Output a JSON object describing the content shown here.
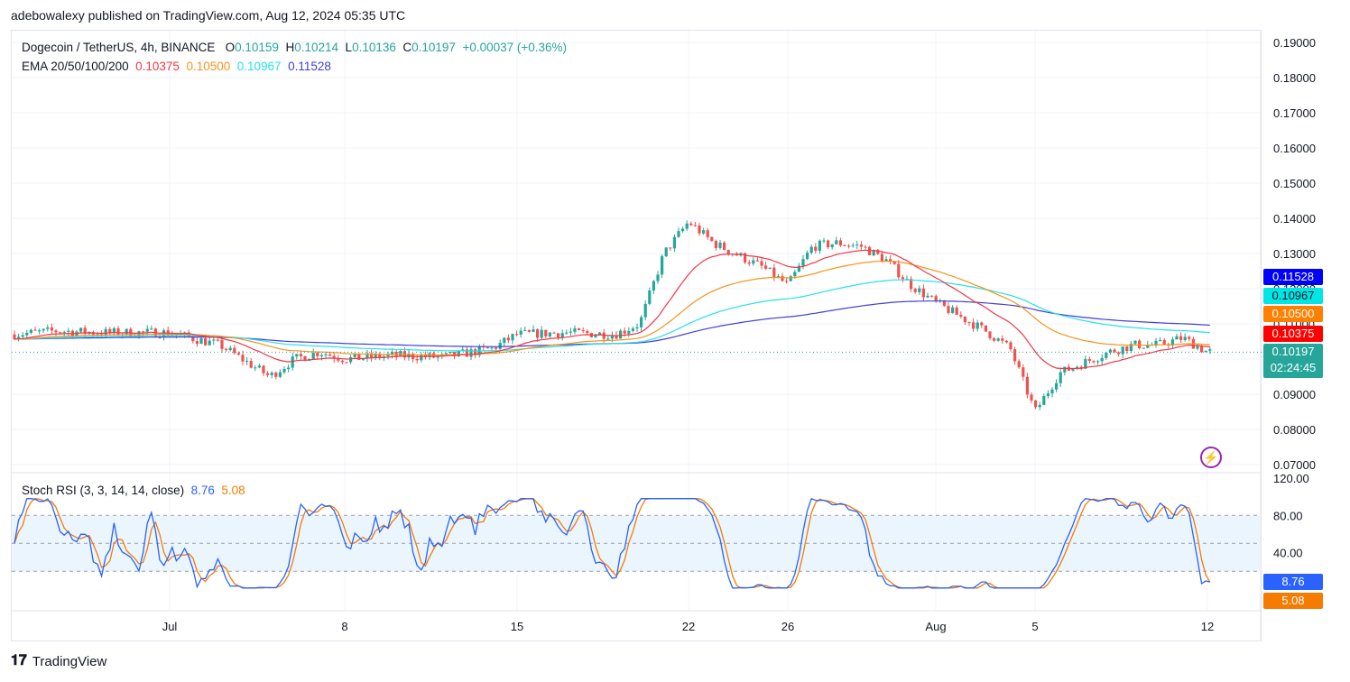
{
  "header": {
    "published": "adebowalexy published on TradingView.com, Aug 12, 2024 05:35 UTC"
  },
  "legend": {
    "symbol": "Dogecoin / TetherUS, 4h, BINANCE",
    "o_label": "O",
    "o": "0.10159",
    "h_label": "H",
    "h": "0.10214",
    "l_label": "L",
    "l": "0.10136",
    "c_label": "C",
    "c": "0.10197",
    "change": "+0.00037 (+0.36%)",
    "ema_label": "EMA 20/50/100/200",
    "ema20": "0.10375",
    "ema50": "0.10500",
    "ema100": "0.10967",
    "ema200": "0.11528"
  },
  "rsi_legend": {
    "label": "Stoch RSI (3, 3, 14, 14, close)",
    "k": "8.76",
    "d": "5.08"
  },
  "price_tags": {
    "ema200": "0.11528",
    "ema100": "0.10967",
    "ema50": "0.10500",
    "ema20": "0.10375",
    "last": "0.10197",
    "countdown": "02:24:45"
  },
  "colors": {
    "up": "#26a69a",
    "down": "#ef5350",
    "ema20": "#f23645",
    "ema50": "#f7931a",
    "ema100": "#26e0e8",
    "ema200": "#3f3fd9",
    "stoch_k": "#2962ff",
    "stoch_d": "#f57c00",
    "tag_ema200": "#0000ff",
    "tag_ema100": "#00e6e6",
    "tag_ema50": "#ff8000",
    "tag_ema20": "#ff0000",
    "tag_last": "#26a69a"
  },
  "footer": {
    "brand": "TradingView"
  },
  "chart_data": [
    {
      "type": "candlestick",
      "title": "Dogecoin / TetherUS, 4h, BINANCE",
      "ylim": [
        0.07,
        0.19
      ],
      "y_ticks": [
        "0.19000",
        "0.18000",
        "0.17000",
        "0.16000",
        "0.15000",
        "0.14000",
        "0.13000",
        "0.12000",
        "0.11000",
        "0.10000",
        "0.09000",
        "0.08000",
        "0.07000"
      ],
      "x_ticks": [
        "Jul",
        "8",
        "15",
        "22",
        "26",
        "Aug",
        "5",
        "12"
      ],
      "close_path": [
        [
          "start",
          0.107
        ],
        [
          "Jun 26",
          0.108
        ],
        [
          "Jun 28",
          0.1075
        ],
        [
          "Jul 1",
          0.1075
        ],
        [
          "Jul 3",
          0.104
        ],
        [
          "Jul 5",
          0.095
        ],
        [
          "Jul 6",
          0.1
        ],
        [
          "Jul 7",
          0.102
        ],
        [
          "Jul 8",
          0.1
        ],
        [
          "Jul 10",
          0.101
        ],
        [
          "Jul 12",
          0.1005
        ],
        [
          "Jul 14",
          0.103
        ],
        [
          "Jul 15",
          0.107
        ],
        [
          "Jul 17",
          0.1075
        ],
        [
          "Jul 19",
          0.107
        ],
        [
          "Jul 20",
          0.11
        ],
        [
          "Jul 21",
          0.13
        ],
        [
          "Jul 22",
          0.139
        ],
        [
          "Jul 23",
          0.133
        ],
        [
          "Jul 25",
          0.126
        ],
        [
          "Jul 26",
          0.121
        ],
        [
          "Jul 27",
          0.132
        ],
        [
          "Jul 28",
          0.133
        ],
        [
          "Jul 29",
          0.132
        ],
        [
          "Jul 30",
          0.128
        ],
        [
          "Jul 31",
          0.121
        ],
        [
          "Aug 1",
          0.116
        ],
        [
          "Aug 2",
          0.112
        ],
        [
          "Aug 3",
          0.108
        ],
        [
          "Aug 4",
          0.103
        ],
        [
          "Aug 5",
          0.085
        ],
        [
          "Aug 6",
          0.096
        ],
        [
          "Aug 7",
          0.099
        ],
        [
          "Aug 8",
          0.102
        ],
        [
          "Aug 9",
          0.104
        ],
        [
          "Aug 10",
          0.104
        ],
        [
          "Aug 11",
          0.106
        ],
        [
          "Aug 12",
          0.102
        ]
      ],
      "series": [
        {
          "name": "EMA 20",
          "last": 0.10375
        },
        {
          "name": "EMA 50",
          "last": 0.105
        },
        {
          "name": "EMA 100",
          "last": 0.10967
        },
        {
          "name": "EMA 200",
          "last": 0.11528
        }
      ]
    },
    {
      "type": "line",
      "title": "Stoch RSI (3, 3, 14, 14, close)",
      "ylim": [
        0,
        120
      ],
      "y_ticks": [
        "120.00",
        "80.00",
        "40.00"
      ],
      "bands": [
        20,
        50,
        80
      ],
      "series": [
        {
          "name": "K",
          "last": 8.76
        },
        {
          "name": "D",
          "last": 5.08
        }
      ]
    }
  ]
}
